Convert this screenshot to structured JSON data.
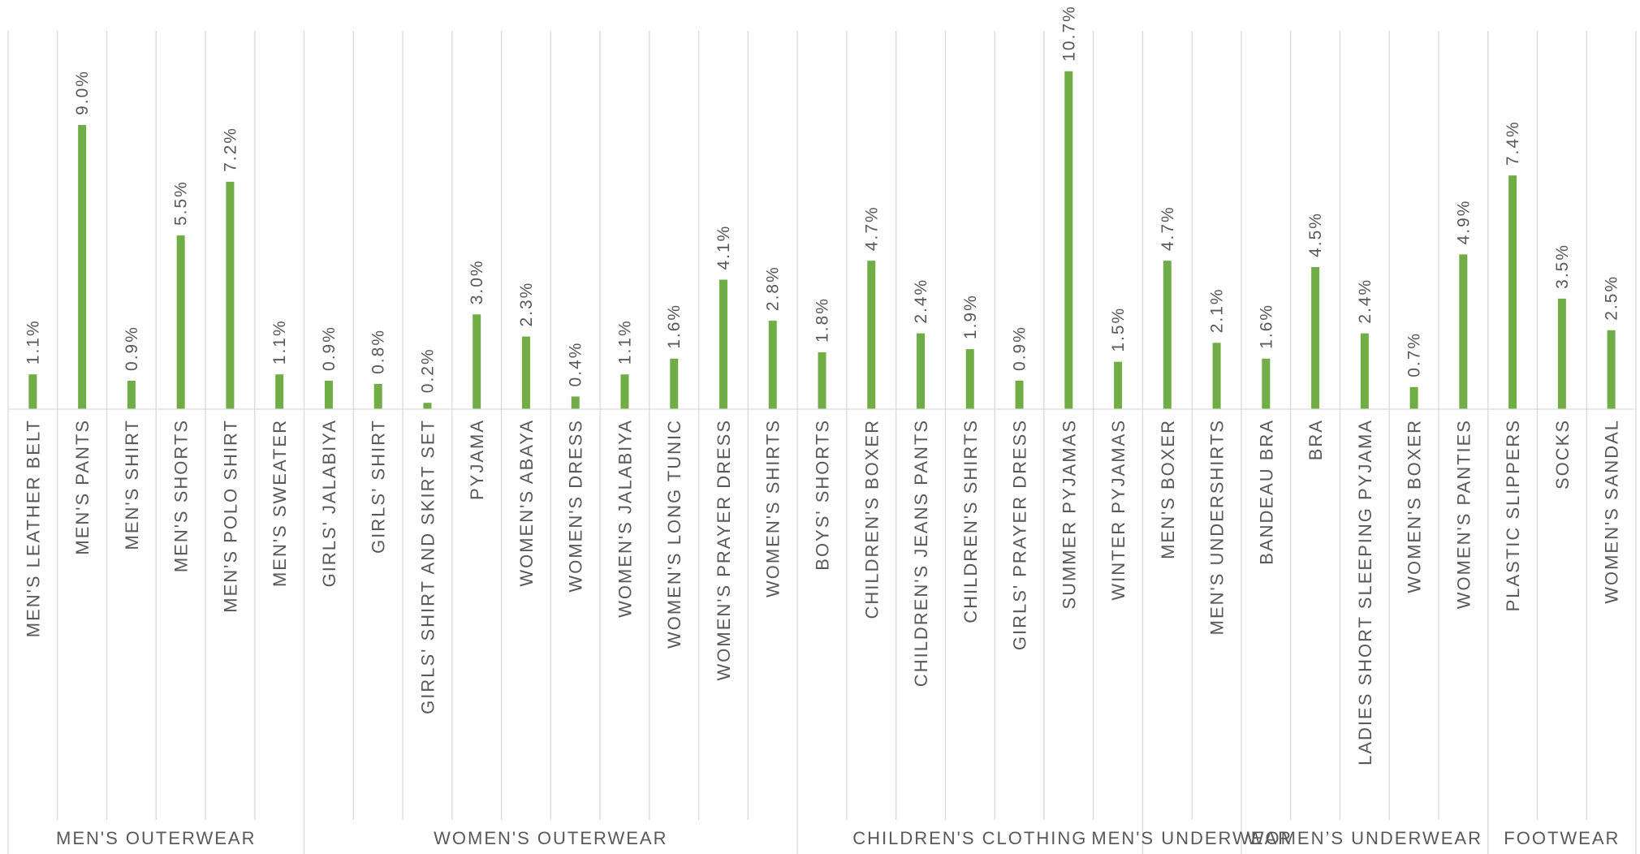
{
  "chart_data": {
    "type": "bar",
    "color": "#70ad47",
    "groups": [
      {
        "name": "MEN'S OUTERWEAR",
        "categories": [
          "MEN'S LEATHER BELT",
          "MEN'S PANTS",
          "MEN'S SHIRT",
          "MEN'S SHORTS",
          "MEN'S POLO SHIRT",
          "MEN'S SWEATER"
        ],
        "values": [
          1.1,
          9.0,
          0.9,
          5.5,
          7.2,
          1.1
        ],
        "value_labels": [
          "1.1%",
          "9.0%",
          "0.9%",
          "5.5%",
          "7.2%",
          "1.1%"
        ]
      },
      {
        "name": "WOMEN'S OUTERWEAR",
        "categories": [
          "GIRLS' JALABIYA",
          "GIRLS' SHIRT",
          "GIRLS' SHIRT AND SKIRT SET",
          "PYJAMA",
          "WOMEN'S ABAYA",
          "WOMEN'S DRESS",
          "WOMEN'S JALABIYA",
          "WOMEN'S LONG TUNIC",
          "WOMEN'S PRAYER DRESS",
          "WOMEN'S SHIRTS"
        ],
        "values": [
          0.9,
          0.8,
          0.2,
          3.0,
          2.3,
          0.4,
          1.1,
          1.6,
          4.1,
          2.8
        ],
        "value_labels": [
          "0.9%",
          "0.8%",
          "0.2%",
          "3.0%",
          "2.3%",
          "0.4%",
          "1.1%",
          "1.6%",
          "4.1%",
          "2.8%"
        ]
      },
      {
        "name": "CHILDREN'S CLOTHING",
        "categories": [
          "BOYS' SHORTS",
          "CHILDREN'S BOXER",
          "CHILDREN'S JEANS PANTS",
          "CHILDREN'S SHIRTS",
          "GIRLS' PRAYER DRESS",
          "SUMMER PYJAMAS",
          "WINTER PYJAMAS"
        ],
        "values": [
          1.8,
          4.7,
          2.4,
          1.9,
          0.9,
          10.7,
          1.5
        ],
        "value_labels": [
          "1.8%",
          "4.7%",
          "2.4%",
          "1.9%",
          "0.9%",
          "10.7%",
          "1.5%"
        ]
      },
      {
        "name": "MEN'S UNDERWEAR",
        "categories": [
          "MEN'S BOXER",
          "MEN'S UNDERSHIRTS"
        ],
        "values": [
          4.7,
          2.1
        ],
        "value_labels": [
          "4.7%",
          "2.1%"
        ]
      },
      {
        "name": "WOMEN’S UNDERWEAR",
        "categories": [
          "BANDEAU BRA",
          "BRA",
          "LADIES SHORT SLEEPING PYJAMA",
          "WOMEN'S BOXER",
          "WOMEN'S PANTIES"
        ],
        "values": [
          1.6,
          4.5,
          2.4,
          0.7,
          4.9
        ],
        "value_labels": [
          "1.6%",
          "4.5%",
          "2.4%",
          "0.7%",
          "4.9%"
        ]
      },
      {
        "name": "FOOTWEAR",
        "categories": [
          "PLASTIC SLIPPERS",
          "SOCKS",
          "WOMEN'S SANDAL"
        ],
        "values": [
          7.4,
          3.5,
          2.5
        ],
        "value_labels": [
          "7.4%",
          "3.5%",
          "2.5%"
        ]
      }
    ]
  }
}
